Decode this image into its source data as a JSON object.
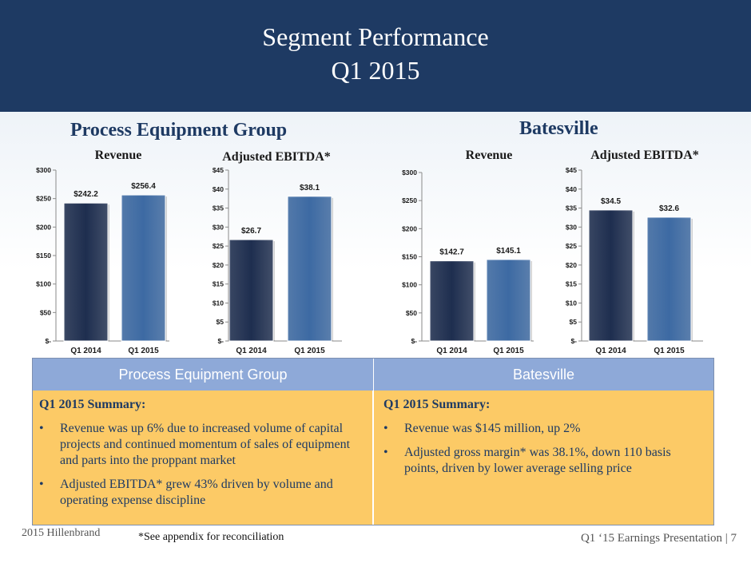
{
  "header": {
    "title_line1": "Segment  Performance",
    "title_line2": "Q1 2015"
  },
  "sections": {
    "left": "Process Equipment Group",
    "right": "Batesville"
  },
  "colors": {
    "bar_q1_2014": "#1e2e4f",
    "bar_q1_2015": "#3d6aa3",
    "header_bg": "#1e3a63"
  },
  "chart_data": [
    {
      "type": "bar",
      "id": "peg-revenue",
      "title": "Revenue",
      "categories": [
        "Q1 2014",
        "Q1 2015"
      ],
      "values": [
        242.2,
        256.4
      ],
      "data_labels": [
        "$242.2",
        "$256.4"
      ],
      "ylim": [
        0,
        300
      ],
      "yticks": [
        0,
        50,
        100,
        150,
        200,
        250,
        300
      ],
      "ytick_labels": [
        "$-",
        "$50",
        "$100",
        "$150",
        "$200",
        "$250",
        "$300"
      ]
    },
    {
      "type": "bar",
      "id": "peg-ebitda",
      "title": "Adjusted EBITDA*",
      "categories": [
        "Q1 2014",
        "Q1 2015"
      ],
      "values": [
        26.7,
        38.1
      ],
      "data_labels": [
        "$26.7",
        "$38.1"
      ],
      "ylim": [
        0,
        45
      ],
      "yticks": [
        0,
        5,
        10,
        15,
        20,
        25,
        30,
        35,
        40,
        45
      ],
      "ytick_labels": [
        "$-",
        "$5",
        "$10",
        "$15",
        "$20",
        "$25",
        "$30",
        "$35",
        "$40",
        "$45"
      ]
    },
    {
      "type": "bar",
      "id": "bv-revenue",
      "title": "Revenue",
      "categories": [
        "Q1 2014",
        "Q1 2015"
      ],
      "values": [
        142.7,
        145.1
      ],
      "data_labels": [
        "$142.7",
        "$145.1"
      ],
      "ylim": [
        0,
        300
      ],
      "yticks": [
        0,
        50,
        100,
        150,
        200,
        250,
        300
      ],
      "ytick_labels": [
        "$-",
        "$50",
        "$100",
        "$150",
        "$200",
        "$250",
        "$300"
      ]
    },
    {
      "type": "bar",
      "id": "bv-ebitda",
      "title": "Adjusted EBITDA*",
      "categories": [
        "Q1 2014",
        "Q1 2015"
      ],
      "values": [
        34.5,
        32.6
      ],
      "data_labels": [
        "$34.5",
        "$32.6"
      ],
      "ylim": [
        0,
        45
      ],
      "yticks": [
        0,
        5,
        10,
        15,
        20,
        25,
        30,
        35,
        40,
        45
      ],
      "ytick_labels": [
        "$-",
        "$5",
        "$10",
        "$15",
        "$20",
        "$25",
        "$30",
        "$35",
        "$40",
        "$45"
      ]
    }
  ],
  "table": {
    "left_header": "Process Equipment Group",
    "right_header": "Batesville",
    "left_summary_title": "Q1 2015 Summary:",
    "left_bullets": [
      "Revenue was up 6% due to increased volume of capital projects and continued momentum of sales of equipment and parts into the proppant market",
      "Adjusted EBITDA* grew 43% driven by volume and operating expense discipline"
    ],
    "right_summary_title": "Q1 2015 Summary:",
    "right_bullets": [
      "Revenue was $145 million, up 2%",
      "Adjusted gross margin* was 38.1%, down 110 basis points, driven by lower average selling price"
    ]
  },
  "footer": {
    "left": "2015 Hillenbrand",
    "note": "*See appendix for reconciliation",
    "right": "Q1 ‘15 Earnings Presentation | 7"
  }
}
